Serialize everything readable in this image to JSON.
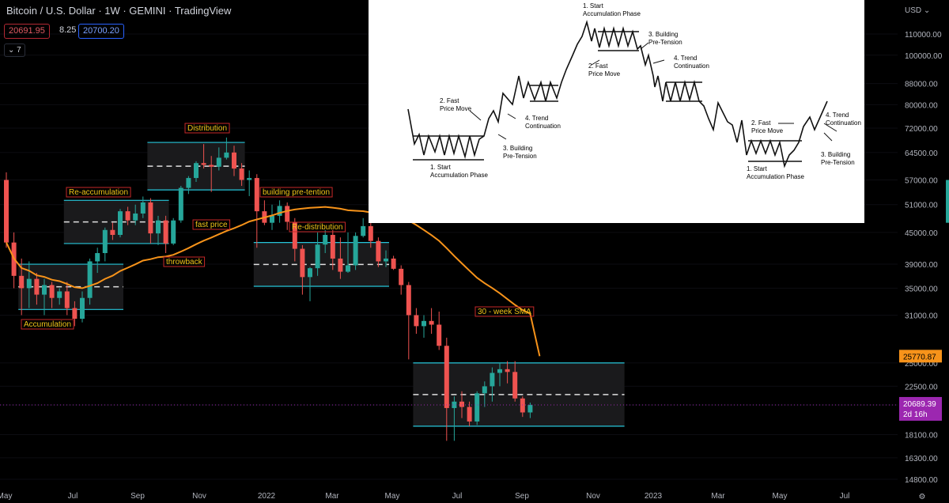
{
  "header": {
    "title": "Bitcoin / U.S. Dollar · 1W · GEMINI · TradingView",
    "bid": "20691.95",
    "spread": "8.25",
    "ask": "20700.20",
    "indicator_toggle": "⌄ 7"
  },
  "price_axis": {
    "currency": "USD",
    "ticks": [
      110000,
      100000,
      88000,
      80000,
      72000,
      64500,
      57000,
      51000,
      45000,
      39000,
      35000,
      31000,
      25000,
      22500,
      20689.39,
      18100,
      16300,
      14800
    ],
    "tick_labels": [
      "110000.00",
      "100000.00",
      "88000.00",
      "80000.00",
      "72000.00",
      "64500.00",
      "57000.00",
      "51000.00",
      "45000.00",
      "39000.00",
      "35000.00",
      "31000.00",
      "25000.00",
      "22500.00",
      "18100.00",
      "16300.00",
      "14800.00"
    ],
    "sma_badge": "25770.87",
    "last_price_badge": "20689.39",
    "countdown": "2d 16h"
  },
  "time_axis": {
    "labels": [
      "May",
      "Jul",
      "Sep",
      "Nov",
      "2022",
      "Mar",
      "May",
      "Jul",
      "Sep",
      "Nov",
      "2023",
      "Mar",
      "May",
      "Jul"
    ]
  },
  "annotations": {
    "accumulation": "Accumulation",
    "reaccumulation": "Re-accumulation",
    "throwback": "throwback",
    "distribution": "Distribution",
    "fast_price": "fast price",
    "building": "building pre-tention",
    "redistribution": "Re-distribution",
    "sma": "30 - week SMA"
  },
  "inset": {
    "l1": "1. Start",
    "l2": "Accumulation Phase",
    "fast1": "2. Fast",
    "fast2": "Price Move",
    "bld1": "3. Building",
    "bld2": "Pre-Tension",
    "tr1": "4. Trend",
    "tr2": "Continuation"
  },
  "colors": {
    "up": "#26a69a",
    "down": "#ef5350",
    "sma": "#f7931a",
    "box": "#26c6da",
    "label": "#f0c419",
    "label_border": "#c62828"
  },
  "chart_data": {
    "type": "candlestick",
    "title": "Bitcoin / U.S. Dollar · 1W · GEMINI",
    "series": [
      {
        "name": "BTCUSD",
        "ohlc_start": "2021-05-03",
        "interval": "1W",
        "candles": [
          [
            57000,
            59000,
            42000,
            43000
          ],
          [
            43000,
            45000,
            35000,
            37000
          ],
          [
            37000,
            40000,
            31000,
            35000
          ],
          [
            35000,
            39500,
            32000,
            36500
          ],
          [
            36500,
            37500,
            32500,
            34000
          ],
          [
            34000,
            36500,
            31000,
            35500
          ],
          [
            35500,
            36000,
            32000,
            33500
          ],
          [
            33500,
            35000,
            32500,
            34500
          ],
          [
            34500,
            36000,
            31000,
            32000
          ],
          [
            32000,
            33000,
            29500,
            30500
          ],
          [
            30500,
            34500,
            30000,
            33500
          ],
          [
            33500,
            40000,
            32500,
            39500
          ],
          [
            39500,
            42000,
            37500,
            41000
          ],
          [
            41000,
            46000,
            39500,
            45500
          ],
          [
            45500,
            47000,
            43500,
            44500
          ],
          [
            44500,
            50000,
            44000,
            49500
          ],
          [
            49500,
            50500,
            46500,
            47500
          ],
          [
            47500,
            51000,
            46500,
            49000
          ],
          [
            49000,
            52900,
            48000,
            51500
          ],
          [
            51500,
            52500,
            42800,
            44800
          ],
          [
            44800,
            48500,
            42500,
            47500
          ],
          [
            47500,
            48500,
            41000,
            42800
          ],
          [
            42800,
            48000,
            42500,
            47500
          ],
          [
            47500,
            55500,
            47000,
            55000
          ],
          [
            55000,
            58000,
            53500,
            57500
          ],
          [
            57500,
            62000,
            56500,
            61500
          ],
          [
            61500,
            67000,
            60000,
            61000
          ],
          [
            61000,
            63500,
            54000,
            60500
          ],
          [
            60500,
            66000,
            59500,
            63000
          ],
          [
            63000,
            69000,
            62500,
            64500
          ],
          [
            64500,
            66500,
            58000,
            60000
          ],
          [
            60000,
            61500,
            55500,
            57000
          ],
          [
            57000,
            59500,
            53000,
            57500
          ],
          [
            57500,
            58500,
            42000,
            49500
          ],
          [
            49500,
            52000,
            46500,
            47000
          ],
          [
            47000,
            51000,
            45500,
            48500
          ],
          [
            48500,
            52000,
            47000,
            50700
          ],
          [
            50700,
            51500,
            45500,
            47200
          ],
          [
            47200,
            48000,
            39500,
            41800
          ],
          [
            41800,
            42500,
            34000,
            36800
          ],
          [
            36800,
            38500,
            33000,
            38300
          ],
          [
            38300,
            45000,
            37000,
            42600
          ],
          [
            42600,
            45500,
            41000,
            44500
          ],
          [
            44500,
            45500,
            38000,
            40000
          ],
          [
            40000,
            44000,
            36500,
            37700
          ],
          [
            37700,
            45000,
            37500,
            38800
          ],
          [
            38800,
            45000,
            38000,
            44300
          ],
          [
            44300,
            48000,
            44000,
            46300
          ],
          [
            46300,
            48200,
            42000,
            43300
          ],
          [
            43300,
            44000,
            38500,
            39500
          ],
          [
            39500,
            41500,
            38500,
            40000
          ],
          [
            40000,
            40500,
            38000,
            38200
          ],
          [
            38200,
            38800,
            34000,
            35500
          ],
          [
            35500,
            36000,
            25400,
            31000
          ],
          [
            31000,
            32000,
            28500,
            29500
          ],
          [
            29500,
            31000,
            28000,
            30200
          ],
          [
            30200,
            32000,
            28500,
            29700
          ],
          [
            29700,
            31500,
            26500,
            27000
          ],
          [
            27000,
            28000,
            17600,
            20400
          ],
          [
            20400,
            21500,
            17600,
            21000
          ],
          [
            21000,
            22000,
            19500,
            20500
          ],
          [
            20500,
            21000,
            18800,
            19200
          ],
          [
            19200,
            22000,
            18900,
            21800
          ],
          [
            21800,
            23000,
            20500,
            22500
          ],
          [
            22500,
            24500,
            21000,
            23900
          ],
          [
            23900,
            25000,
            22500,
            24300
          ],
          [
            24300,
            25200,
            22800,
            24000
          ],
          [
            24000,
            25200,
            21000,
            21300
          ],
          [
            21300,
            21500,
            19600,
            20000
          ],
          [
            20000,
            20900,
            19500,
            20690
          ]
        ]
      },
      {
        "name": "30 - week SMA"
      }
    ],
    "ylim": [
      14800,
      110000
    ],
    "y_scale": "log"
  }
}
